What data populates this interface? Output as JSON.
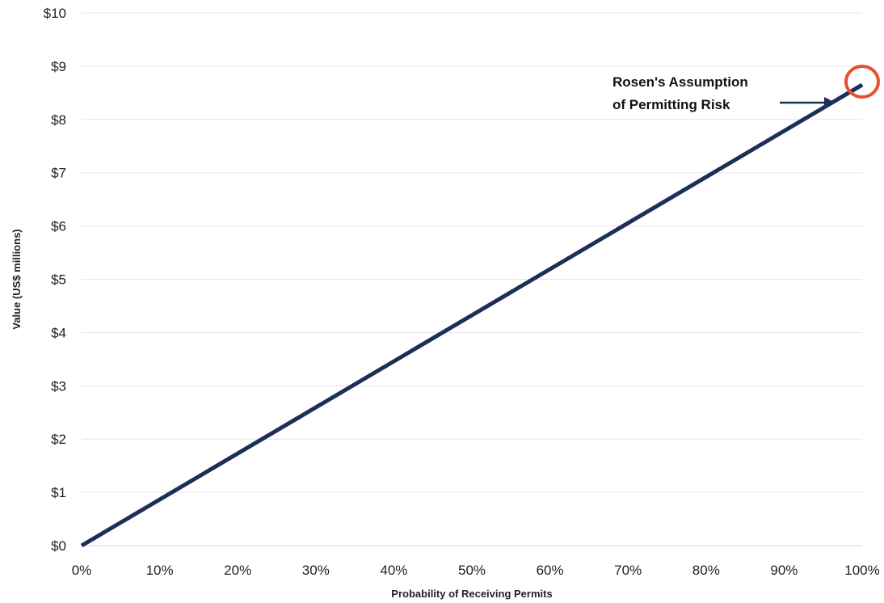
{
  "chart_data": {
    "type": "line",
    "title": "",
    "xlabel": "Probability of Receiving Permits",
    "ylabel": "Value (US$ millions)",
    "xlim": [
      0,
      100
    ],
    "ylim": [
      0,
      10
    ],
    "x_ticks": [
      "0%",
      "10%",
      "20%",
      "30%",
      "40%",
      "50%",
      "60%",
      "70%",
      "80%",
      "90%",
      "100%"
    ],
    "y_ticks": [
      "$0",
      "$1",
      "$2",
      "$3",
      "$4",
      "$5",
      "$6",
      "$7",
      "$8",
      "$9",
      "$10"
    ],
    "grid": true,
    "series": [
      {
        "color": "#1b2f57",
        "x": [
          0,
          100
        ],
        "y": [
          0,
          8.65
        ]
      }
    ],
    "annotation": {
      "lines": [
        "Rosen's Assumption",
        "of Permitting Risk"
      ],
      "target_x": 100,
      "target_y": 8.65,
      "marker": "circle",
      "marker_color": "#e8502f",
      "arrow_color": "#1b2f57"
    }
  }
}
